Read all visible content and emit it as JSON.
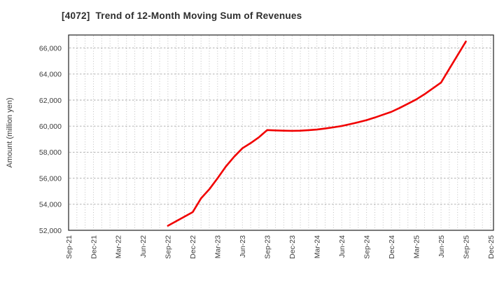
{
  "title": "[4072]  Trend of 12-Month Moving Sum of Revenues",
  "chart_data": {
    "type": "line",
    "title": "[4072]  Trend of 12-Month Moving Sum of Revenues",
    "xlabel": "",
    "ylabel": "Amount (million yen)",
    "ylim": [
      52000,
      67000
    ],
    "ytick_values": [
      52000,
      54000,
      56000,
      58000,
      60000,
      62000,
      64000,
      66000
    ],
    "ytick_labels": [
      "52,000",
      "54,000",
      "56,000",
      "58,000",
      "60,000",
      "62,000",
      "64,000",
      "66,000"
    ],
    "xtick_labels": [
      "Sep-21",
      "Dec-21",
      "Mar-22",
      "Jun-22",
      "Sep-22",
      "Dec-22",
      "Mar-23",
      "Jun-23",
      "Sep-23",
      "Dec-23",
      "Mar-24",
      "Jun-24",
      "Sep-24",
      "Dec-24",
      "Mar-25",
      "Jun-25",
      "Sep-25",
      "Dec-25"
    ],
    "grid": true,
    "legend_position": "none",
    "line_color": "#f10000",
    "series": [
      {
        "name": "12-Month Moving Sum of Revenues",
        "x": [
          "Sep-22",
          "Oct-22",
          "Nov-22",
          "Dec-22",
          "Jan-23",
          "Feb-23",
          "Mar-23",
          "Apr-23",
          "May-23",
          "Jun-23",
          "Jul-23",
          "Aug-23",
          "Sep-23",
          "Oct-23",
          "Nov-23",
          "Dec-23",
          "Jan-24",
          "Feb-24",
          "Mar-24",
          "Apr-24",
          "May-24",
          "Jun-24",
          "Jul-24",
          "Aug-24",
          "Sep-24",
          "Oct-24",
          "Nov-24",
          "Dec-24",
          "Jan-25",
          "Feb-25",
          "Mar-25",
          "Apr-25",
          "May-25",
          "Jun-25",
          "Jul-25",
          "Aug-25",
          "Sep-25"
        ],
        "values": [
          52350,
          52700,
          53050,
          53400,
          54450,
          55150,
          56000,
          56900,
          57650,
          58300,
          58700,
          59150,
          59700,
          59670,
          59650,
          59640,
          59650,
          59690,
          59740,
          59820,
          59910,
          60010,
          60150,
          60300,
          60460,
          60660,
          60880,
          61100,
          61400,
          61720,
          62050,
          62450,
          62900,
          63350,
          64400,
          65450,
          66500
        ]
      }
    ]
  }
}
